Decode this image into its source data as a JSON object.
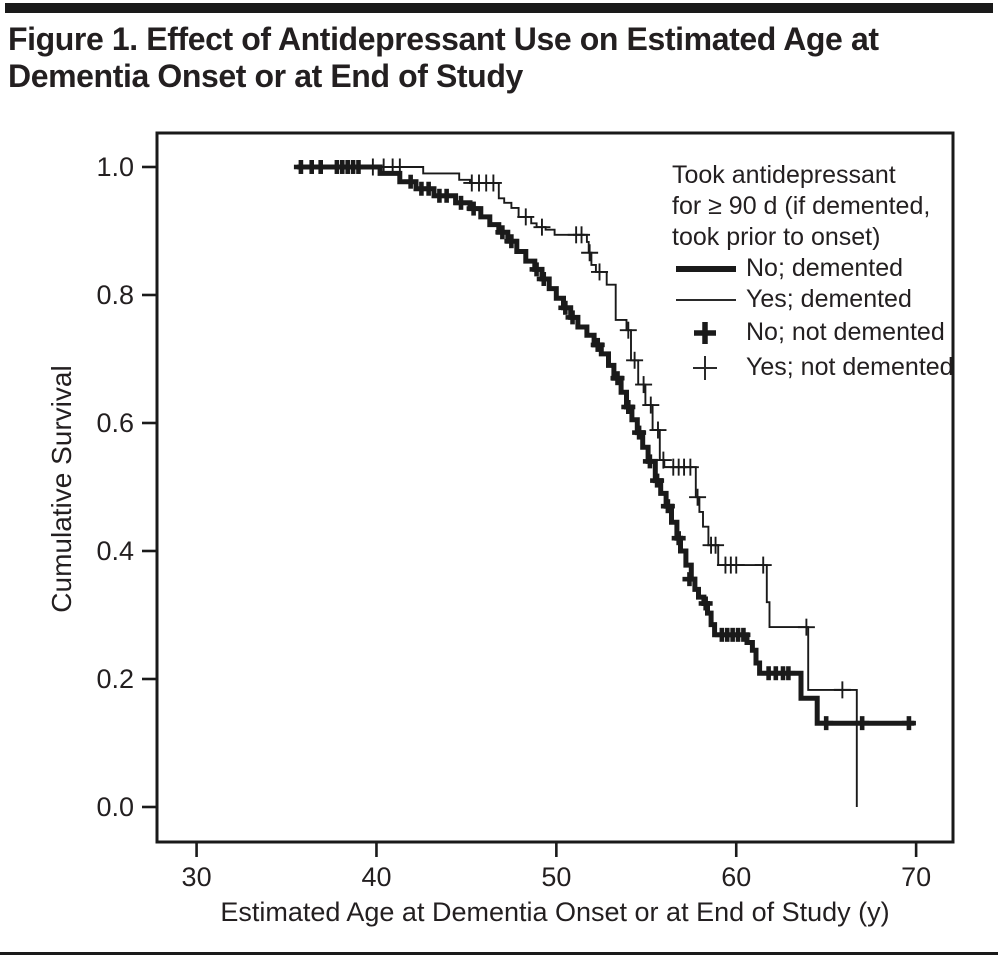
{
  "page": {
    "title_line1": "Figure 1. Effect of Antidepressant Use on Estimated Age at",
    "title_line2": "Dementia Onset or at End of Study"
  },
  "chart_data": {
    "type": "line",
    "subtype": "kaplan-meier-step",
    "title": "Figure 1. Effect of Antidepressant Use on Estimated Age at Dementia Onset or at End of Study",
    "xlabel": "Estimated Age at Dementia Onset or at End of Study (y)",
    "ylabel": "Cumulative Survival",
    "line_color": "#1a1a1a",
    "grid": false,
    "x_axis": {
      "min": 27.8,
      "max": 72.05,
      "ticks": [
        30,
        40,
        50,
        60,
        70
      ]
    },
    "y_axis": {
      "min": -0.0547,
      "max": 1.0531,
      "ticks": [
        1.0,
        0.8,
        0.6,
        0.4,
        0.2,
        0.0
      ],
      "tick_labels": [
        "1.0",
        "0.8",
        "0.6",
        "0.4",
        "0.2",
        "0.0"
      ]
    },
    "legend": {
      "position": "top-right",
      "header_lines": [
        "Took antidepressant",
        "for ≥ 90 d (if demented,",
        "took prior to onset)"
      ],
      "items": [
        {
          "marker": "thick-line",
          "label": "No; demented"
        },
        {
          "marker": "thin-line",
          "label": "Yes; demented"
        },
        {
          "marker": "thick-plus",
          "label": "No; not demented"
        },
        {
          "marker": "thin-plus",
          "label": "Yes; not demented"
        }
      ]
    },
    "series": [
      {
        "name": "No antidepressant",
        "line": "thick",
        "stroke_width": 5,
        "points": [
          [
            35.6,
            1.0
          ],
          [
            40.2,
            0.99
          ],
          [
            41.3,
            0.977
          ],
          [
            42.2,
            0.966
          ],
          [
            43.2,
            0.955
          ],
          [
            44.4,
            0.944
          ],
          [
            45.2,
            0.935
          ],
          [
            45.8,
            0.922
          ],
          [
            46.3,
            0.91
          ],
          [
            46.8,
            0.898
          ],
          [
            47.3,
            0.884
          ],
          [
            47.8,
            0.868
          ],
          [
            48.3,
            0.853
          ],
          [
            48.8,
            0.84
          ],
          [
            49.2,
            0.825
          ],
          [
            49.6,
            0.81
          ],
          [
            50.0,
            0.795
          ],
          [
            50.4,
            0.78
          ],
          [
            50.8,
            0.765
          ],
          [
            51.2,
            0.75
          ],
          [
            51.7,
            0.737
          ],
          [
            52.1,
            0.722
          ],
          [
            52.5,
            0.708
          ],
          [
            52.9,
            0.69
          ],
          [
            53.2,
            0.67
          ],
          [
            53.6,
            0.648
          ],
          [
            53.9,
            0.625
          ],
          [
            54.2,
            0.605
          ],
          [
            54.5,
            0.585
          ],
          [
            54.8,
            0.562
          ],
          [
            55.1,
            0.54
          ],
          [
            55.5,
            0.51
          ],
          [
            55.8,
            0.49
          ],
          [
            56.1,
            0.47
          ],
          [
            56.4,
            0.445
          ],
          [
            56.7,
            0.42
          ],
          [
            56.9,
            0.4
          ],
          [
            57.2,
            0.378
          ],
          [
            57.5,
            0.356
          ],
          [
            57.7,
            0.34
          ],
          [
            57.9,
            0.328
          ],
          [
            58.2,
            0.318
          ],
          [
            58.4,
            0.303
          ],
          [
            58.6,
            0.285
          ],
          [
            58.8,
            0.269
          ],
          [
            60.6,
            0.257
          ],
          [
            60.9,
            0.245
          ],
          [
            61.1,
            0.225
          ],
          [
            61.3,
            0.209
          ],
          [
            63.6,
            0.17
          ],
          [
            64.5,
            0.131
          ],
          [
            69.9,
            0.131
          ]
        ],
        "censor_marks": [
          [
            35.8,
            1.0
          ],
          [
            36.4,
            1.0
          ],
          [
            36.9,
            1.0
          ],
          [
            37.8,
            1.0
          ],
          [
            38.1,
            1.0
          ],
          [
            38.4,
            1.0
          ],
          [
            38.7,
            1.0
          ],
          [
            39.0,
            1.0
          ],
          [
            41.9,
            0.977
          ],
          [
            42.5,
            0.966
          ],
          [
            42.9,
            0.966
          ],
          [
            43.5,
            0.955
          ],
          [
            43.9,
            0.955
          ],
          [
            44.7,
            0.944
          ],
          [
            45.4,
            0.935
          ],
          [
            47.0,
            0.898
          ],
          [
            47.5,
            0.884
          ],
          [
            48.9,
            0.84
          ],
          [
            49.3,
            0.825
          ],
          [
            50.5,
            0.78
          ],
          [
            50.9,
            0.765
          ],
          [
            52.3,
            0.722
          ],
          [
            53.4,
            0.67
          ],
          [
            54.0,
            0.625
          ],
          [
            54.6,
            0.585
          ],
          [
            55.2,
            0.54
          ],
          [
            55.6,
            0.51
          ],
          [
            56.2,
            0.47
          ],
          [
            56.8,
            0.42
          ],
          [
            57.4,
            0.356
          ],
          [
            58.3,
            0.318
          ],
          [
            59.2,
            0.269
          ],
          [
            59.5,
            0.269
          ],
          [
            59.8,
            0.269
          ],
          [
            60.1,
            0.269
          ],
          [
            60.4,
            0.269
          ],
          [
            61.8,
            0.209
          ],
          [
            62.2,
            0.209
          ],
          [
            62.6,
            0.209
          ],
          [
            62.9,
            0.209
          ],
          [
            65.0,
            0.131
          ],
          [
            67.0,
            0.131
          ],
          [
            69.6,
            0.131
          ]
        ]
      },
      {
        "name": "Antidepressant ≥ 90 d",
        "line": "thin",
        "stroke_width": 1.9,
        "points": [
          [
            37.0,
            1.0
          ],
          [
            42.6,
            0.99
          ],
          [
            44.6,
            0.98
          ],
          [
            45.2,
            0.975
          ],
          [
            46.8,
            0.951
          ],
          [
            47.1,
            0.944
          ],
          [
            47.5,
            0.936
          ],
          [
            47.9,
            0.922
          ],
          [
            48.6,
            0.912
          ],
          [
            48.9,
            0.906
          ],
          [
            49.4,
            0.902
          ],
          [
            49.9,
            0.894
          ],
          [
            51.7,
            0.883
          ],
          [
            51.8,
            0.866
          ],
          [
            51.95,
            0.847
          ],
          [
            52.2,
            0.836
          ],
          [
            52.8,
            0.816
          ],
          [
            53.3,
            0.761
          ],
          [
            53.9,
            0.745
          ],
          [
            54.15,
            0.698
          ],
          [
            54.55,
            0.66
          ],
          [
            54.95,
            0.628
          ],
          [
            55.35,
            0.589
          ],
          [
            55.75,
            0.542
          ],
          [
            56.0,
            0.531
          ],
          [
            57.75,
            0.484
          ],
          [
            57.95,
            0.461
          ],
          [
            58.15,
            0.438
          ],
          [
            58.45,
            0.409
          ],
          [
            59.0,
            0.378
          ],
          [
            61.7,
            0.32
          ],
          [
            61.85,
            0.281
          ],
          [
            64.0,
            0.183
          ],
          [
            66.65,
            0.183
          ],
          [
            66.7,
            0.0
          ]
        ],
        "censor_marks": [
          [
            39.8,
            1.0
          ],
          [
            40.4,
            1.0
          ],
          [
            40.9,
            1.0
          ],
          [
            41.3,
            1.0
          ],
          [
            45.3,
            0.975
          ],
          [
            45.7,
            0.975
          ],
          [
            46.1,
            0.975
          ],
          [
            46.5,
            0.975
          ],
          [
            48.3,
            0.922
          ],
          [
            49.2,
            0.906
          ],
          [
            51.1,
            0.894
          ],
          [
            51.4,
            0.894
          ],
          [
            51.85,
            0.866
          ],
          [
            52.4,
            0.836
          ],
          [
            54.0,
            0.745
          ],
          [
            54.35,
            0.698
          ],
          [
            54.85,
            0.66
          ],
          [
            55.25,
            0.628
          ],
          [
            55.65,
            0.589
          ],
          [
            55.95,
            0.542
          ],
          [
            56.5,
            0.531
          ],
          [
            56.8,
            0.531
          ],
          [
            57.1,
            0.531
          ],
          [
            57.45,
            0.531
          ],
          [
            57.85,
            0.484
          ],
          [
            58.6,
            0.409
          ],
          [
            58.85,
            0.409
          ],
          [
            59.4,
            0.378
          ],
          [
            59.7,
            0.378
          ],
          [
            60.0,
            0.378
          ],
          [
            61.5,
            0.378
          ],
          [
            63.9,
            0.281
          ],
          [
            65.9,
            0.183
          ]
        ]
      }
    ]
  }
}
